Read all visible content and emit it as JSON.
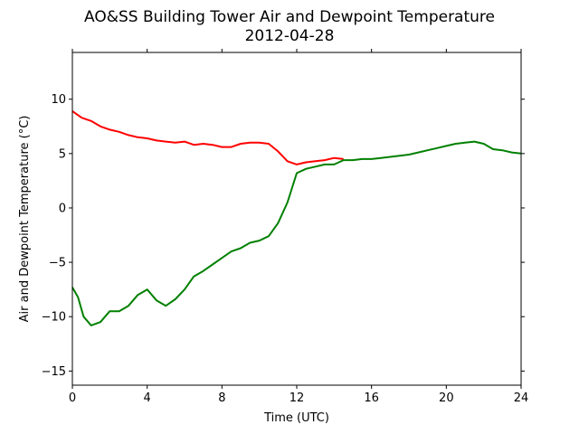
{
  "chart_data": {
    "type": "line",
    "title": "AO&SS Building Tower Air and Dewpoint Temperature",
    "subtitle": "2012-04-28",
    "xlabel": "Time (UTC)",
    "ylabel": "Air and Dewpoint Temperature (°C)",
    "xlim": [
      0,
      24
    ],
    "ylim": [
      -16.3,
      14.3
    ],
    "xticks": [
      0,
      4,
      8,
      12,
      16,
      20,
      24
    ],
    "yticks": [
      -15,
      -10,
      -5,
      0,
      5,
      10
    ],
    "grid": false,
    "legend": "none",
    "series": [
      {
        "color": "#ff0000",
        "x": [
          0,
          0.5,
          1,
          1.5,
          2,
          2.5,
          3,
          3.5,
          4,
          4.5,
          5,
          5.5,
          6,
          6.5,
          7,
          7.5,
          8,
          8.5,
          9,
          9.5,
          10,
          10.5,
          11,
          11.5,
          12,
          12.5,
          13,
          13.5,
          14,
          14.5
        ],
        "y": [
          8.9,
          8.3,
          8.0,
          7.5,
          7.2,
          7.0,
          6.7,
          6.5,
          6.4,
          6.2,
          6.1,
          6.0,
          6.1,
          5.8,
          5.9,
          5.8,
          5.6,
          5.6,
          5.9,
          6.0,
          6.0,
          5.9,
          5.2,
          4.3,
          4.0,
          4.2,
          4.3,
          4.4,
          4.6,
          4.5
        ]
      },
      {
        "color": "#008000",
        "x": [
          0,
          0.3,
          0.6,
          1,
          1.5,
          2,
          2.5,
          3,
          3.5,
          4,
          4.5,
          5,
          5.5,
          6,
          6.5,
          7,
          7.5,
          8,
          8.5,
          9,
          9.5,
          10,
          10.5,
          11,
          11.5,
          12,
          12.5,
          13,
          13.5,
          14,
          14.5,
          15,
          15.5,
          16,
          16.5,
          17,
          17.5,
          18,
          18.5,
          19,
          19.5,
          20,
          20.5,
          21,
          21.5,
          22,
          22.5,
          23,
          23.5,
          24
        ],
        "y": [
          -7.3,
          -8.2,
          -10.0,
          -10.8,
          -10.5,
          -9.5,
          -9.5,
          -9.0,
          -8.0,
          -7.5,
          -8.5,
          -9.0,
          -8.4,
          -7.5,
          -6.3,
          -5.8,
          -5.2,
          -4.6,
          -4.0,
          -3.7,
          -3.2,
          -3.0,
          -2.6,
          -1.4,
          0.5,
          3.2,
          3.6,
          3.8,
          4.0,
          4.0,
          4.4,
          4.4,
          4.5,
          4.5,
          4.6,
          4.7,
          4.8,
          4.9,
          5.1,
          5.3,
          5.5,
          5.7,
          5.9,
          6.0,
          6.1,
          5.9,
          5.4,
          5.3,
          5.1,
          5.0
        ]
      }
    ]
  }
}
